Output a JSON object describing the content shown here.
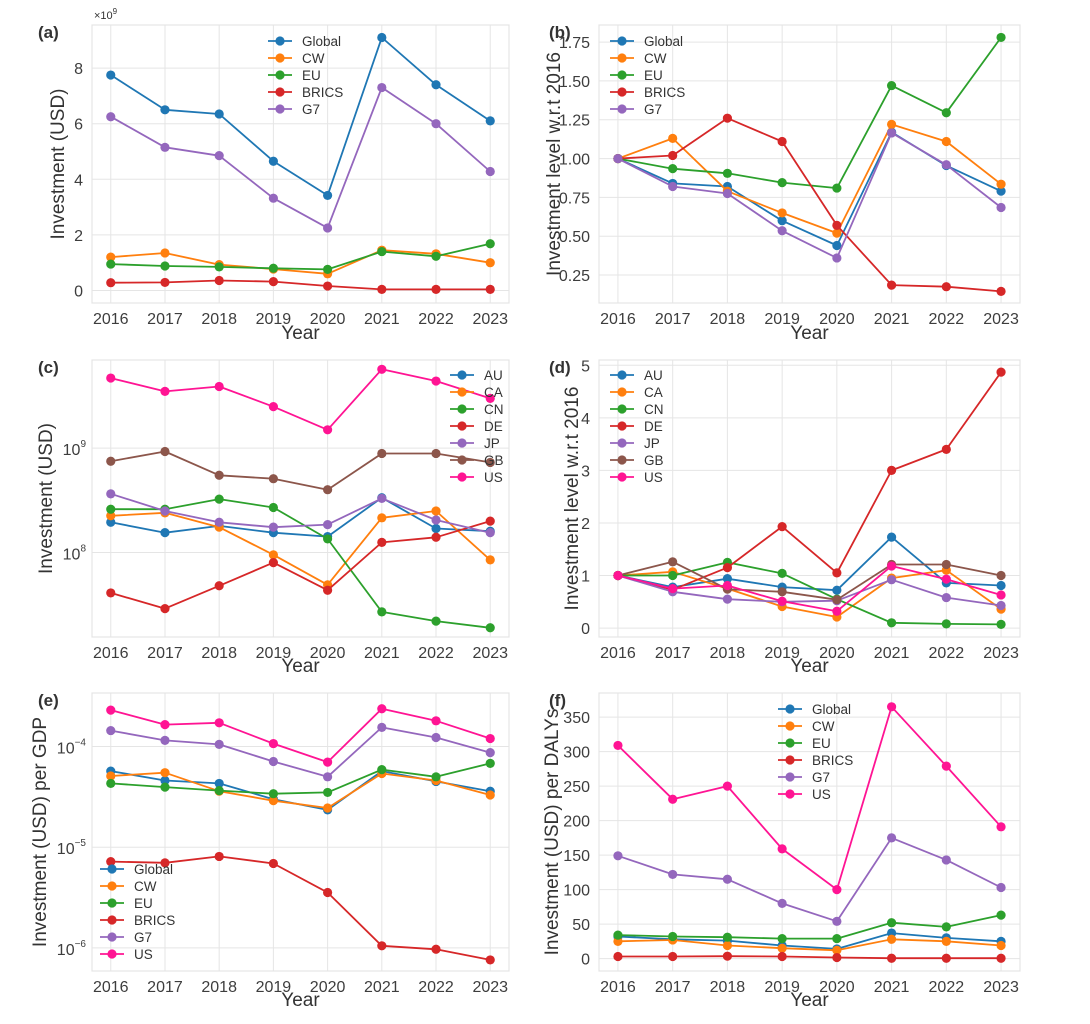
{
  "figure": {
    "years": [
      "2016",
      "2017",
      "2018",
      "2019",
      "2020",
      "2021",
      "2022",
      "2023"
    ],
    "colors": {
      "Global": "#1f77b4",
      "CW": "#ff7f0e",
      "EU": "#2ca02c",
      "BRICS": "#d62728",
      "G7": "#9467bd",
      "US": "#ff1493",
      "AU": "#1f77b4",
      "CA": "#ff7f0e",
      "CN": "#2ca02c",
      "DE": "#d62728",
      "JP": "#9467bd",
      "GB": "#8c564b"
    },
    "grid_color": "#e5e5e5"
  },
  "chart_data": [
    {
      "id": "a",
      "panel_label": "(a)",
      "type": "line",
      "xlabel": "Year",
      "ylabel": "Investment (USD)",
      "yscale": "linear",
      "offset_text": "×10^9",
      "ylim": [
        -0.45,
        9.55
      ],
      "yticks": [
        0,
        2,
        4,
        6,
        8
      ],
      "ytick_labels": [
        "0",
        "2",
        "4",
        "6",
        "8"
      ],
      "unit_multiplier": 1000000000.0,
      "grid": true,
      "legend_position": "top-center",
      "categories": [
        "2016",
        "2017",
        "2018",
        "2019",
        "2020",
        "2021",
        "2022",
        "2023"
      ],
      "series": [
        {
          "name": "Global",
          "values": [
            7.75,
            6.5,
            6.35,
            4.65,
            3.42,
            9.1,
            7.4,
            6.1
          ]
        },
        {
          "name": "CW",
          "values": [
            1.2,
            1.35,
            0.93,
            0.77,
            0.6,
            1.45,
            1.32,
            1.0
          ]
        },
        {
          "name": "EU",
          "values": [
            0.95,
            0.88,
            0.85,
            0.8,
            0.76,
            1.4,
            1.23,
            1.68
          ]
        },
        {
          "name": "BRICS",
          "values": [
            0.28,
            0.29,
            0.36,
            0.32,
            0.16,
            0.04,
            0.04,
            0.04
          ]
        },
        {
          "name": "G7",
          "values": [
            6.25,
            5.15,
            4.85,
            3.32,
            2.25,
            7.3,
            6.0,
            4.28
          ]
        }
      ]
    },
    {
      "id": "b",
      "panel_label": "(b)",
      "type": "line",
      "xlabel": "Year",
      "ylabel": "Investment level w.r.t 2016",
      "yscale": "linear",
      "ylim": [
        0.07,
        1.86
      ],
      "yticks": [
        0.25,
        0.5,
        0.75,
        1.0,
        1.25,
        1.5,
        1.75
      ],
      "ytick_labels": [
        "0.25",
        "0.50",
        "0.75",
        "1.00",
        "1.25",
        "1.50",
        "1.75"
      ],
      "grid": true,
      "legend_position": "top-left",
      "categories": [
        "2016",
        "2017",
        "2018",
        "2019",
        "2020",
        "2021",
        "2022",
        "2023"
      ],
      "series": [
        {
          "name": "Global",
          "values": [
            1.0,
            0.84,
            0.82,
            0.6,
            0.44,
            1.17,
            0.955,
            0.79
          ]
        },
        {
          "name": "CW",
          "values": [
            1.0,
            1.13,
            0.79,
            0.65,
            0.52,
            1.22,
            1.11,
            0.835
          ]
        },
        {
          "name": "EU",
          "values": [
            1.0,
            0.935,
            0.905,
            0.845,
            0.81,
            1.47,
            1.295,
            1.78
          ]
        },
        {
          "name": "BRICS",
          "values": [
            1.0,
            1.02,
            1.26,
            1.11,
            0.57,
            0.185,
            0.175,
            0.145
          ]
        },
        {
          "name": "G7",
          "values": [
            1.0,
            0.82,
            0.775,
            0.535,
            0.36,
            1.165,
            0.96,
            0.685
          ]
        }
      ]
    },
    {
      "id": "c",
      "panel_label": "(c)",
      "type": "line",
      "xlabel": "Year",
      "ylabel": "Investment (USD)",
      "yscale": "log",
      "ylim": [
        15500000.0,
        7000000000.0
      ],
      "yticks": [
        100000000.0,
        1000000000.0
      ],
      "ytick_labels": [
        {
          "base": "10",
          "exp": "8"
        },
        {
          "base": "10",
          "exp": "9"
        }
      ],
      "grid": true,
      "legend_position": "top-right",
      "categories": [
        "2016",
        "2017",
        "2018",
        "2019",
        "2020",
        "2021",
        "2022",
        "2023"
      ],
      "series": [
        {
          "name": "AU",
          "values": [
            195000000.0,
            155000000.0,
            180000000.0,
            155000000.0,
            142000000.0,
            335000000.0,
            170000000.0,
            160000000.0
          ]
        },
        {
          "name": "CA",
          "values": [
            225000000.0,
            240000000.0,
            175000000.0,
            95000000.0,
            49000000.0,
            215000000.0,
            250000000.0,
            85000000.0
          ]
        },
        {
          "name": "CN",
          "values": [
            260000000.0,
            260000000.0,
            325000000.0,
            270000000.0,
            135000000.0,
            27000000.0,
            22000000.0,
            19000000.0
          ]
        },
        {
          "name": "DE",
          "values": [
            41000000.0,
            29000000.0,
            48000000.0,
            80000000.0,
            43500000.0,
            125000000.0,
            140000000.0,
            200000000.0
          ]
        },
        {
          "name": "JP",
          "values": [
            365000000.0,
            250000000.0,
            195000000.0,
            175000000.0,
            185000000.0,
            330000000.0,
            205000000.0,
            155000000.0
          ]
        },
        {
          "name": "GB",
          "values": [
            750000000.0,
            930000000.0,
            550000000.0,
            510000000.0,
            400000000.0,
            890000000.0,
            890000000.0,
            730000000.0
          ]
        },
        {
          "name": "US",
          "values": [
            4700000000.0,
            3500000000.0,
            3900000000.0,
            2500000000.0,
            1500000000.0,
            5700000000.0,
            4400000000.0,
            3000000000.0
          ]
        }
      ]
    },
    {
      "id": "d",
      "panel_label": "(d)",
      "type": "line",
      "xlabel": "Year",
      "ylabel": "Investment level w.r.t 2016",
      "yscale": "linear",
      "ylim": [
        -0.17,
        5.1
      ],
      "yticks": [
        0,
        1,
        2,
        3,
        4,
        5
      ],
      "ytick_labels": [
        "0",
        "1",
        "2",
        "3",
        "4",
        "5"
      ],
      "grid": true,
      "legend_position": "top-left",
      "categories": [
        "2016",
        "2017",
        "2018",
        "2019",
        "2020",
        "2021",
        "2022",
        "2023"
      ],
      "series": [
        {
          "name": "AU",
          "values": [
            1.0,
            0.78,
            0.94,
            0.78,
            0.72,
            1.73,
            0.86,
            0.81
          ]
        },
        {
          "name": "CA",
          "values": [
            1.0,
            1.07,
            0.75,
            0.41,
            0.21,
            0.95,
            1.1,
            0.36
          ]
        },
        {
          "name": "CN",
          "values": [
            1.0,
            1.0,
            1.25,
            1.04,
            0.55,
            0.1,
            0.08,
            0.07
          ]
        },
        {
          "name": "DE",
          "values": [
            1.0,
            0.73,
            1.15,
            1.93,
            1.05,
            3.0,
            3.4,
            4.87
          ]
        },
        {
          "name": "JP",
          "values": [
            1.0,
            0.69,
            0.55,
            0.5,
            0.52,
            0.92,
            0.58,
            0.43
          ]
        },
        {
          "name": "GB",
          "values": [
            1.0,
            1.26,
            0.74,
            0.69,
            0.54,
            1.21,
            1.21,
            1.0
          ]
        },
        {
          "name": "US",
          "values": [
            1.0,
            0.75,
            0.81,
            0.51,
            0.32,
            1.18,
            0.93,
            0.63
          ]
        }
      ]
    },
    {
      "id": "e",
      "panel_label": "(e)",
      "type": "line",
      "xlabel": "Year",
      "ylabel": "Investment (USD) per GDP",
      "yscale": "log",
      "ylim": [
        5.9e-07,
        0.00034
      ],
      "yticks": [
        1e-06,
        1e-05,
        0.0001
      ],
      "ytick_labels": [
        {
          "base": "10",
          "exp": "−6"
        },
        {
          "base": "10",
          "exp": "−5"
        },
        {
          "base": "10",
          "exp": "−4"
        }
      ],
      "grid": true,
      "legend_position": "lower-left",
      "categories": [
        "2016",
        "2017",
        "2018",
        "2019",
        "2020",
        "2021",
        "2022",
        "2023"
      ],
      "series": [
        {
          "name": "Global",
          "values": [
            5.7e-05,
            4.6e-05,
            4.3e-05,
            3e-05,
            2.35e-05,
            5.7e-05,
            4.5e-05,
            3.6e-05
          ]
        },
        {
          "name": "CW",
          "values": [
            5.1e-05,
            5.5e-05,
            3.6e-05,
            2.9e-05,
            2.45e-05,
            5.4e-05,
            4.6e-05,
            3.3e-05
          ]
        },
        {
          "name": "EU",
          "values": [
            4.3e-05,
            3.95e-05,
            3.65e-05,
            3.4e-05,
            3.5e-05,
            5.9e-05,
            5e-05,
            6.8e-05
          ]
        },
        {
          "name": "BRICS",
          "values": [
            7.2e-06,
            7e-06,
            8.1e-06,
            6.9e-06,
            3.55e-06,
            1.05e-06,
            9.7e-07,
            7.6e-07
          ]
        },
        {
          "name": "G7",
          "values": [
            0.000144,
            0.000115,
            0.000105,
            7.1e-05,
            5e-05,
            0.000155,
            0.000123,
            8.7e-05
          ]
        },
        {
          "name": "US",
          "values": [
            0.00023,
            0.000165,
            0.000172,
            0.000107,
            7e-05,
            0.000237,
            0.00018,
            0.00012
          ]
        }
      ]
    },
    {
      "id": "f",
      "panel_label": "(f)",
      "type": "line",
      "xlabel": "Year",
      "ylabel": "Investment (USD) per DALYs",
      "yscale": "linear",
      "ylim": [
        -18,
        385
      ],
      "yticks": [
        0,
        50,
        100,
        150,
        200,
        250,
        300,
        350
      ],
      "ytick_labels": [
        "0",
        "50",
        "100",
        "150",
        "200",
        "250",
        "300",
        "350"
      ],
      "grid": true,
      "legend_position": "top-center",
      "categories": [
        "2016",
        "2017",
        "2018",
        "2019",
        "2020",
        "2021",
        "2022",
        "2023"
      ],
      "series": [
        {
          "name": "Global",
          "values": [
            32,
            28,
            26,
            19,
            14,
            37,
            30,
            25
          ]
        },
        {
          "name": "CW",
          "values": [
            25,
            27,
            19,
            15,
            12,
            28,
            25,
            19
          ]
        },
        {
          "name": "EU",
          "values": [
            34,
            32,
            31,
            29,
            29,
            52,
            46,
            63
          ]
        },
        {
          "name": "BRICS",
          "values": [
            3,
            3,
            3.5,
            3,
            1.5,
            0.5,
            0.5,
            0.5
          ]
        },
        {
          "name": "G7",
          "values": [
            149,
            122,
            115,
            80,
            54,
            175,
            143,
            103
          ]
        },
        {
          "name": "US",
          "values": [
            309,
            231,
            250,
            159,
            100,
            365,
            279,
            191
          ]
        }
      ]
    }
  ]
}
